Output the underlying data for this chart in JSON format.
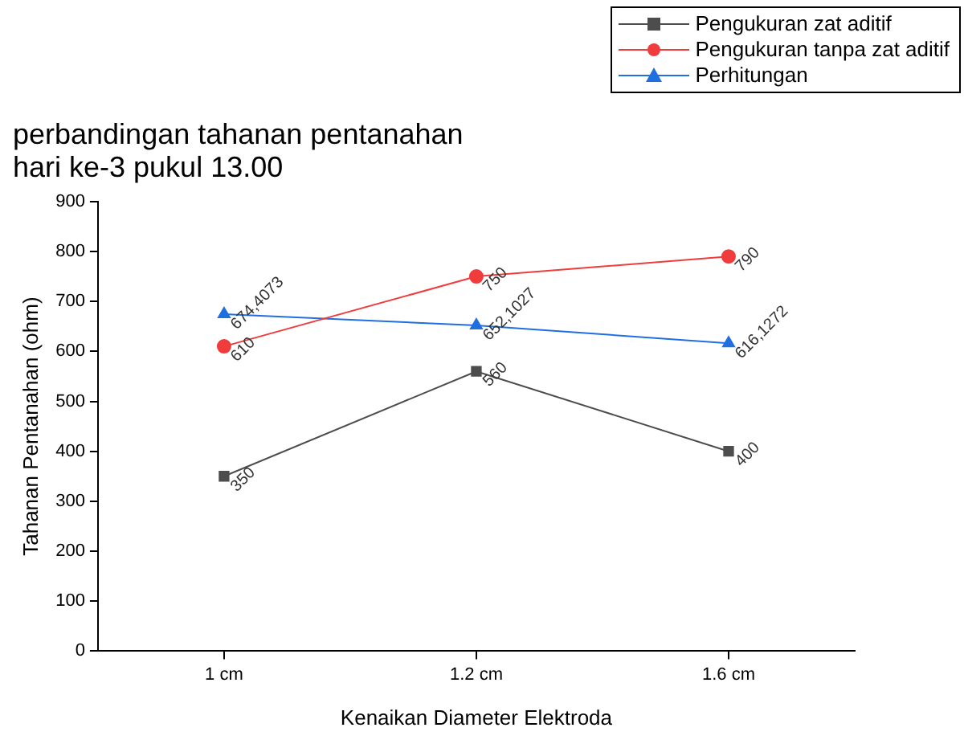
{
  "chart_data": {
    "type": "line",
    "title": "perbandingan tahanan pentanahan\nhari ke-3 pukul 13.00",
    "xlabel": "Kenaikan Diameter Elektroda",
    "ylabel": "Tahanan Pentanahan (ohm)",
    "categories": [
      "1 cm",
      "1.2 cm",
      "1.6 cm"
    ],
    "series": [
      {
        "name": "Pengukuran zat aditif",
        "color": "#4d4d4d",
        "marker": "square",
        "values": [
          350,
          560,
          400
        ],
        "value_labels": [
          "350",
          "560",
          "400"
        ]
      },
      {
        "name": "Pengukuran tanpa zat aditif",
        "color": "#f03c3c",
        "marker": "circle",
        "values": [
          610,
          750,
          790
        ],
        "value_labels": [
          "610",
          "750",
          "790"
        ]
      },
      {
        "name": "Perhitungan",
        "color": "#1f6fe0",
        "marker": "triangle",
        "values": [
          674.4073,
          652.1027,
          616.1272
        ],
        "value_labels": [
          "674,4073",
          "652,1027",
          "616,1272"
        ]
      }
    ],
    "ylim": [
      0,
      900
    ],
    "yticks": [
      0,
      100,
      200,
      300,
      400,
      500,
      600,
      700,
      800,
      900
    ],
    "grid": false,
    "legend": "top right"
  }
}
